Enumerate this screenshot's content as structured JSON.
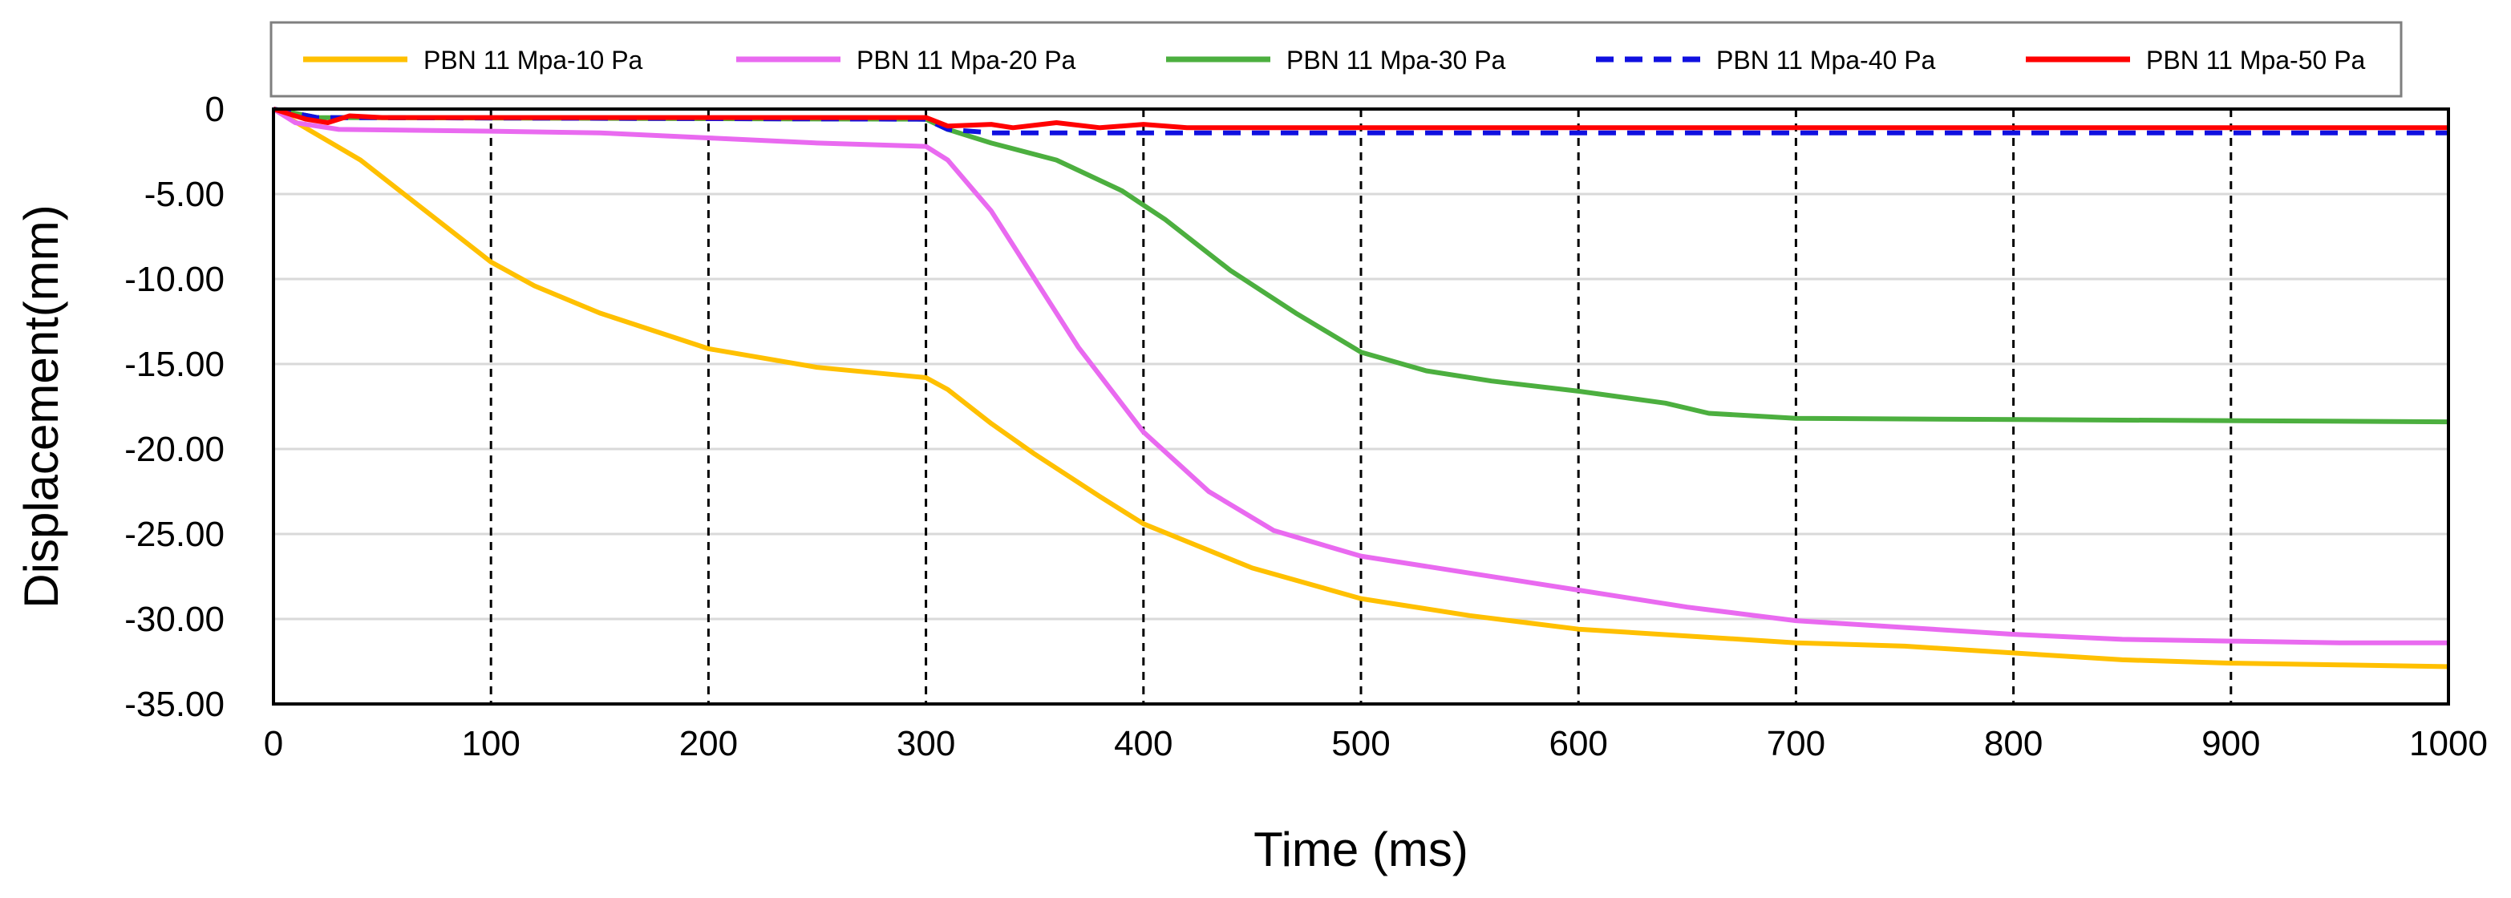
{
  "chart_data": {
    "type": "line",
    "title": "",
    "xlabel": "Time (ms)",
    "ylabel": "Displacement(mm)",
    "xlim": [
      0,
      1000
    ],
    "ylim": [
      -35,
      0
    ],
    "x_ticks": [
      0,
      100,
      200,
      300,
      400,
      500,
      600,
      700,
      800,
      900,
      1000
    ],
    "x_tick_labels": [
      "0",
      "100",
      "200",
      "300",
      "400",
      "500",
      "600",
      "700",
      "800",
      "900",
      "1000"
    ],
    "y_ticks": [
      0,
      -5,
      -10,
      -15,
      -20,
      -25,
      -30,
      -35
    ],
    "y_tick_labels": [
      "0",
      "-5.00",
      "-10.00",
      "-15.00",
      "-20.00",
      "-25.00",
      "-30.00",
      "-35.00"
    ],
    "grid": "horizontal solid gridlines; dashed vertical lines every 100 ms",
    "legend_position": "top",
    "series": [
      {
        "name": "PBN 11 Mpa-10 Pa",
        "color": "#FFC000",
        "dash": "solid",
        "points": [
          [
            0,
            0
          ],
          [
            20,
            -1.5
          ],
          [
            40,
            -3
          ],
          [
            60,
            -5
          ],
          [
            80,
            -7
          ],
          [
            100,
            -9
          ],
          [
            120,
            -10.4
          ],
          [
            150,
            -12
          ],
          [
            200,
            -14.1
          ],
          [
            250,
            -15.2
          ],
          [
            300,
            -15.8
          ],
          [
            310,
            -16.5
          ],
          [
            330,
            -18.5
          ],
          [
            350,
            -20.3
          ],
          [
            380,
            -22.8
          ],
          [
            400,
            -24.4
          ],
          [
            450,
            -27
          ],
          [
            500,
            -28.8
          ],
          [
            550,
            -29.8
          ],
          [
            600,
            -30.6
          ],
          [
            650,
            -31
          ],
          [
            700,
            -31.4
          ],
          [
            750,
            -31.6
          ],
          [
            800,
            -32
          ],
          [
            850,
            -32.4
          ],
          [
            900,
            -32.6
          ],
          [
            950,
            -32.7
          ],
          [
            1000,
            -32.8
          ]
        ]
      },
      {
        "name": "PBN 11 Mpa-20 Pa",
        "color": "#E96AF0",
        "dash": "solid",
        "points": [
          [
            0,
            0
          ],
          [
            10,
            -0.8
          ],
          [
            30,
            -1.2
          ],
          [
            100,
            -1.3
          ],
          [
            150,
            -1.4
          ],
          [
            200,
            -1.7
          ],
          [
            250,
            -2
          ],
          [
            300,
            -2.2
          ],
          [
            310,
            -3
          ],
          [
            330,
            -6
          ],
          [
            350,
            -10
          ],
          [
            370,
            -14
          ],
          [
            400,
            -19
          ],
          [
            430,
            -22.5
          ],
          [
            460,
            -24.8
          ],
          [
            500,
            -26.3
          ],
          [
            550,
            -27.3
          ],
          [
            600,
            -28.3
          ],
          [
            650,
            -29.3
          ],
          [
            700,
            -30.1
          ],
          [
            750,
            -30.5
          ],
          [
            800,
            -30.9
          ],
          [
            850,
            -31.2
          ],
          [
            900,
            -31.3
          ],
          [
            950,
            -31.4
          ],
          [
            1000,
            -31.4
          ]
        ]
      },
      {
        "name": "PBN 11 Mpa-30 Pa",
        "color": "#4CAF3F",
        "dash": "solid",
        "points": [
          [
            0,
            0
          ],
          [
            20,
            -0.5
          ],
          [
            300,
            -0.6
          ],
          [
            310,
            -1.2
          ],
          [
            330,
            -2
          ],
          [
            360,
            -3
          ],
          [
            390,
            -4.8
          ],
          [
            410,
            -6.5
          ],
          [
            440,
            -9.5
          ],
          [
            470,
            -12
          ],
          [
            500,
            -14.3
          ],
          [
            530,
            -15.4
          ],
          [
            560,
            -16
          ],
          [
            600,
            -16.6
          ],
          [
            640,
            -17.3
          ],
          [
            660,
            -17.9
          ],
          [
            700,
            -18.2
          ],
          [
            1000,
            -18.4
          ]
        ]
      },
      {
        "name": "PBN 11 Mpa-40 Pa",
        "color": "#1010E0",
        "dash": "dashed",
        "points": [
          [
            0,
            0
          ],
          [
            20,
            -0.5
          ],
          [
            300,
            -0.6
          ],
          [
            310,
            -1.2
          ],
          [
            330,
            -1.4
          ],
          [
            1000,
            -1.4
          ]
        ]
      },
      {
        "name": "PBN 11 Mpa-50 Pa",
        "color": "#FF0000",
        "dash": "solid",
        "points": [
          [
            0,
            0
          ],
          [
            15,
            -0.6
          ],
          [
            25,
            -0.8
          ],
          [
            35,
            -0.4
          ],
          [
            50,
            -0.5
          ],
          [
            300,
            -0.5
          ],
          [
            310,
            -1
          ],
          [
            330,
            -0.9
          ],
          [
            340,
            -1.1
          ],
          [
            360,
            -0.8
          ],
          [
            380,
            -1.1
          ],
          [
            400,
            -0.9
          ],
          [
            420,
            -1.1
          ],
          [
            1000,
            -1.1
          ]
        ]
      }
    ]
  }
}
